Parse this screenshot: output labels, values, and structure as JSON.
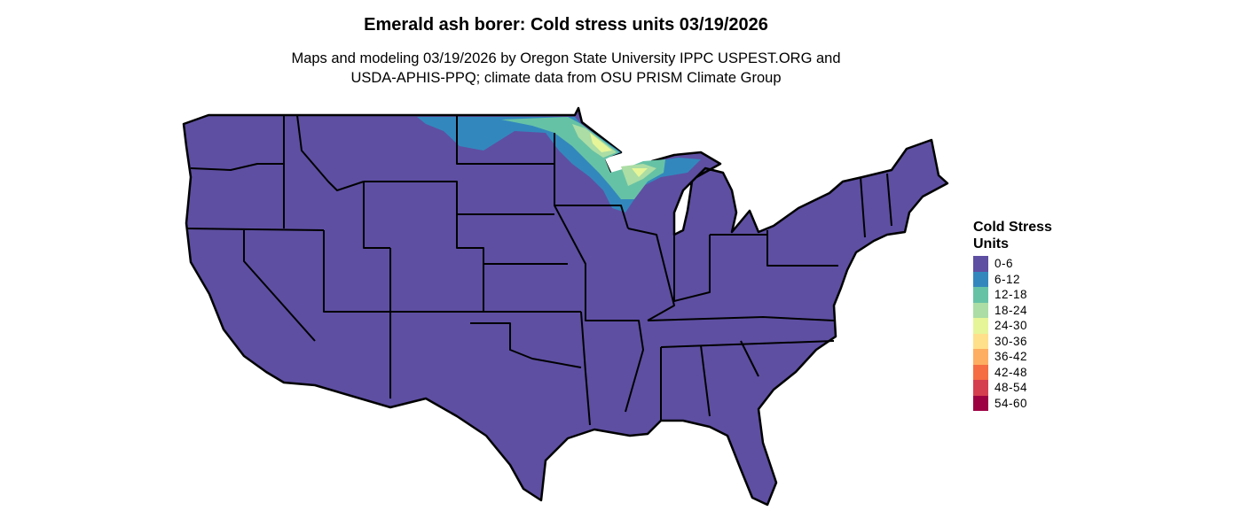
{
  "title": "Emerald ash borer: Cold stress units 03/19/2026",
  "subtitle_line1": "Maps and modeling 03/19/2026 by Oregon State University IPPC USPEST.ORG and",
  "subtitle_line2": "USDA-APHIS-PPQ; climate data from OSU PRISM Climate Group",
  "legend": {
    "title_line1": "Cold Stress",
    "title_line2": "Units",
    "items": [
      {
        "label": "0-6",
        "color": "#5e4fa2"
      },
      {
        "label": "6-12",
        "color": "#3288bd"
      },
      {
        "label": "12-18",
        "color": "#66c2a5"
      },
      {
        "label": "18-24",
        "color": "#abdda4"
      },
      {
        "label": "24-30",
        "color": "#e6f598"
      },
      {
        "label": "30-36",
        "color": "#fee08b"
      },
      {
        "label": "36-42",
        "color": "#fdae61"
      },
      {
        "label": "42-48",
        "color": "#f46d43"
      },
      {
        "label": "48-54",
        "color": "#d53e4f"
      },
      {
        "label": "54-60",
        "color": "#9e0142"
      }
    ]
  }
}
